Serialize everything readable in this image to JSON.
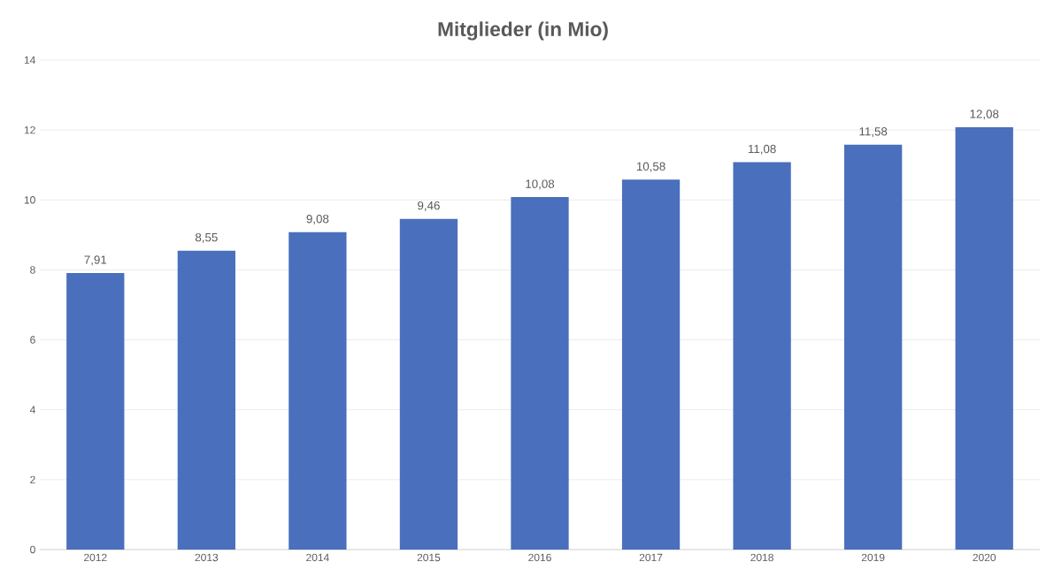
{
  "chart_data": {
    "type": "bar",
    "title": "Mitglieder (in Mio)",
    "categories": [
      "2012",
      "2013",
      "2014",
      "2015",
      "2016",
      "2017",
      "2018",
      "2019",
      "2020"
    ],
    "values": [
      7.91,
      8.55,
      9.08,
      9.46,
      10.08,
      10.58,
      11.08,
      11.58,
      12.08
    ],
    "value_labels": [
      "7,91",
      "8,55",
      "9,08",
      "9,46",
      "10,08",
      "10,58",
      "11,08",
      "11,58",
      "12,08"
    ],
    "color": "#4a6fbd",
    "ylim": [
      0,
      14
    ],
    "yticks": [
      0,
      2,
      4,
      6,
      8,
      10,
      12,
      14
    ],
    "grid": "y"
  }
}
